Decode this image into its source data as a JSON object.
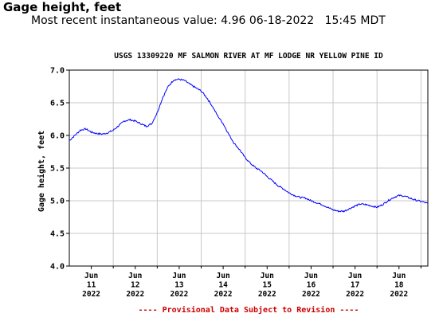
{
  "header": {
    "title": "Gage height, feet",
    "latest_label": "Most recent instantaneous value:",
    "latest_value": "4.96",
    "latest_date": "06-18-2022",
    "latest_time": "15:45 MDT"
  },
  "colors": {
    "series": "#0000ff",
    "provisional": "#cc0000",
    "grid": "#c8c8c8",
    "text": "#000000"
  },
  "chart_data": {
    "type": "line",
    "title": "USGS 13309220 MF SALMON RIVER AT MF LODGE NR YELLOW PINE ID",
    "ylabel": "Gage height, feet",
    "xlabel": "",
    "ylim": [
      4.0,
      7.0
    ],
    "xlim": [
      "2022-06-10T12:00",
      "2022-06-18T15:45"
    ],
    "yticks": [
      "4.0",
      "4.5",
      "5.0",
      "5.5",
      "6.0",
      "6.5",
      "7.0"
    ],
    "xticks": [
      {
        "date": "2022-06-11",
        "month": "Jun",
        "day": "11",
        "year": "2022"
      },
      {
        "date": "2022-06-12",
        "month": "Jun",
        "day": "12",
        "year": "2022"
      },
      {
        "date": "2022-06-13",
        "month": "Jun",
        "day": "13",
        "year": "2022"
      },
      {
        "date": "2022-06-14",
        "month": "Jun",
        "day": "14",
        "year": "2022"
      },
      {
        "date": "2022-06-15",
        "month": "Jun",
        "day": "15",
        "year": "2022"
      },
      {
        "date": "2022-06-16",
        "month": "Jun",
        "day": "16",
        "year": "2022"
      },
      {
        "date": "2022-06-17",
        "month": "Jun",
        "day": "17",
        "year": "2022"
      },
      {
        "date": "2022-06-18",
        "month": "Jun",
        "day": "18",
        "year": "2022"
      }
    ],
    "grid": true,
    "series": [
      {
        "x": [
          "2022-06-10T12:00",
          "2022-06-10T15:00",
          "2022-06-10T18:00",
          "2022-06-10T21:00",
          "2022-06-11T00:00",
          "2022-06-11T03:00",
          "2022-06-11T06:00",
          "2022-06-11T09:00",
          "2022-06-11T12:00",
          "2022-06-11T15:00",
          "2022-06-11T18:00",
          "2022-06-11T21:00",
          "2022-06-12T00:00",
          "2022-06-12T03:00",
          "2022-06-12T06:00",
          "2022-06-12T09:00",
          "2022-06-12T12:00",
          "2022-06-12T15:00",
          "2022-06-12T18:00",
          "2022-06-12T21:00",
          "2022-06-13T00:00",
          "2022-06-13T03:00",
          "2022-06-13T06:00",
          "2022-06-13T09:00",
          "2022-06-13T12:00",
          "2022-06-13T15:00",
          "2022-06-13T18:00",
          "2022-06-13T21:00",
          "2022-06-14T00:00",
          "2022-06-14T03:00",
          "2022-06-14T06:00",
          "2022-06-14T09:00",
          "2022-06-14T12:00",
          "2022-06-14T15:00",
          "2022-06-14T18:00",
          "2022-06-14T21:00",
          "2022-06-15T00:00",
          "2022-06-15T03:00",
          "2022-06-15T06:00",
          "2022-06-15T09:00",
          "2022-06-15T12:00",
          "2022-06-15T15:00",
          "2022-06-15T18:00",
          "2022-06-15T21:00",
          "2022-06-16T00:00",
          "2022-06-16T03:00",
          "2022-06-16T06:00",
          "2022-06-16T09:00",
          "2022-06-16T12:00",
          "2022-06-16T15:00",
          "2022-06-16T18:00",
          "2022-06-16T21:00",
          "2022-06-17T00:00",
          "2022-06-17T03:00",
          "2022-06-17T06:00",
          "2022-06-17T09:00",
          "2022-06-17T12:00",
          "2022-06-17T15:00",
          "2022-06-17T18:00",
          "2022-06-17T21:00",
          "2022-06-18T00:00",
          "2022-06-18T03:00",
          "2022-06-18T06:00",
          "2022-06-18T09:00",
          "2022-06-18T12:00",
          "2022-06-18T15:45"
        ],
        "y": [
          5.92,
          6.0,
          6.08,
          6.1,
          6.05,
          6.03,
          6.02,
          6.04,
          6.08,
          6.15,
          6.22,
          6.24,
          6.22,
          6.18,
          6.14,
          6.18,
          6.35,
          6.58,
          6.75,
          6.85,
          6.86,
          6.84,
          6.78,
          6.73,
          6.68,
          6.58,
          6.45,
          6.3,
          6.18,
          6.02,
          5.88,
          5.78,
          5.66,
          5.57,
          5.5,
          5.45,
          5.37,
          5.3,
          5.23,
          5.18,
          5.12,
          5.08,
          5.05,
          5.04,
          5.0,
          4.97,
          4.94,
          4.9,
          4.86,
          4.84,
          4.84,
          4.88,
          4.92,
          4.95,
          4.94,
          4.92,
          4.9,
          4.94,
          5.0,
          5.05,
          5.08,
          5.07,
          5.04,
          5.01,
          4.99,
          4.96
        ]
      }
    ]
  },
  "footer": {
    "provisional": "---- Provisional Data Subject to Revision ----"
  }
}
